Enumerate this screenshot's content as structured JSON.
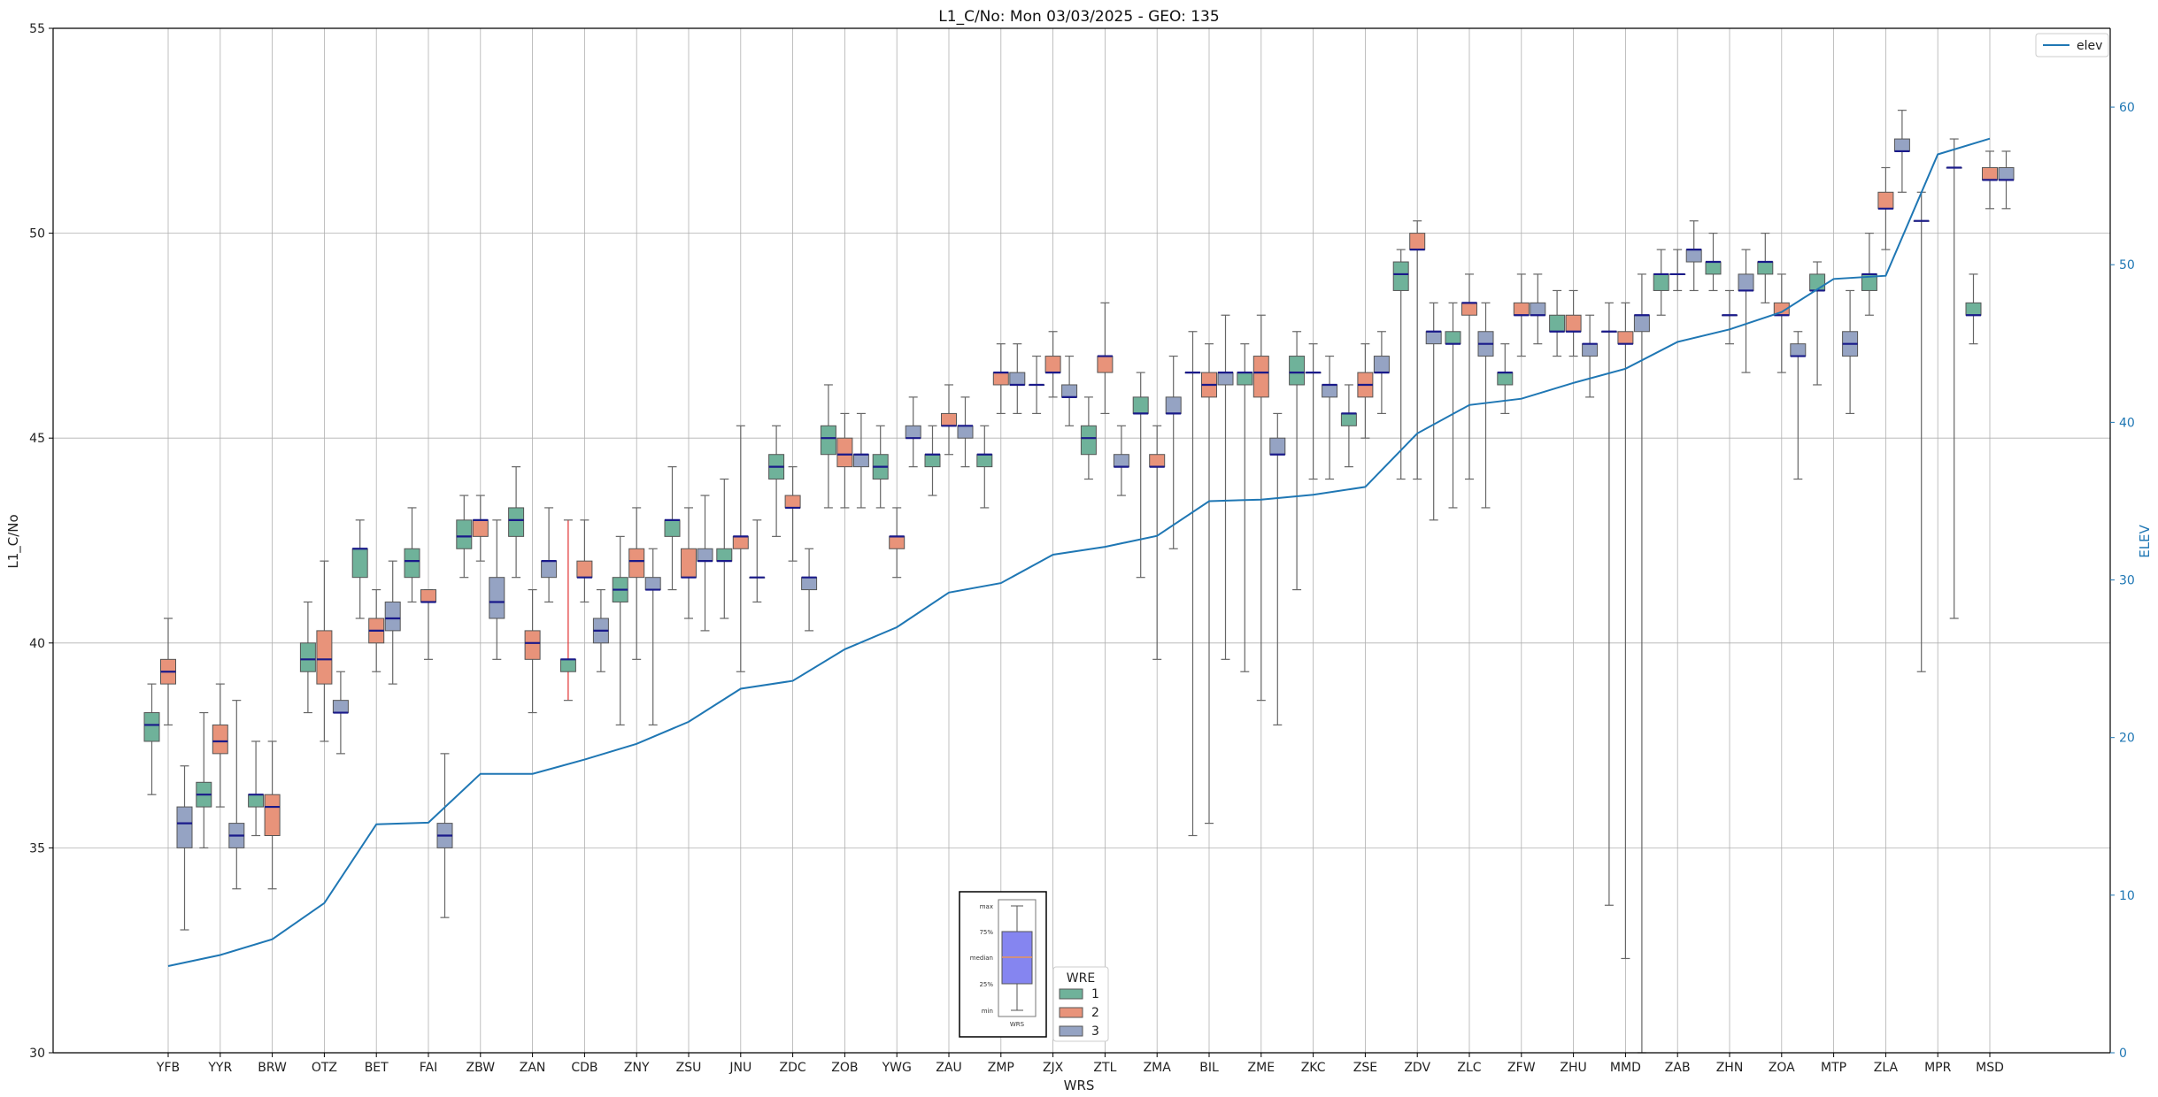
{
  "chart_data": {
    "type": "box",
    "title": "L1_C/No: Mon 03/03/2025 - GEO: 135",
    "xlabel": "WRS",
    "ylabel": "L1_C/No",
    "y2label": "ELEV",
    "ylim": [
      30,
      55
    ],
    "y2lim": [
      0,
      65
    ],
    "yticks": [
      "30",
      "35",
      "40",
      "45",
      "50",
      "55"
    ],
    "y2ticks": [
      "0",
      "10",
      "20",
      "30",
      "40",
      "50",
      "60"
    ],
    "grid": true,
    "categories": [
      "YFB",
      "YYR",
      "BRW",
      "OTZ",
      "BET",
      "FAI",
      "ZBW",
      "ZAN",
      "CDB",
      "ZNY",
      "ZSU",
      "JNU",
      "ZDC",
      "ZOB",
      "YWG",
      "ZAU",
      "ZMP",
      "ZJX",
      "ZTL",
      "ZMA",
      "BIL",
      "ZME",
      "ZKC",
      "ZSE",
      "ZDV",
      "ZLC",
      "ZFW",
      "ZHU",
      "MMD",
      "ZAB",
      "ZHN",
      "ZOA",
      "MTP",
      "ZLA",
      "MPR",
      "MSD"
    ],
    "elev": [
      5.5,
      6.2,
      7.2,
      9.5,
      14.5,
      14.6,
      17.7,
      17.7,
      18.6,
      19.6,
      21.0,
      23.1,
      23.6,
      25.6,
      27.0,
      29.2,
      29.8,
      31.6,
      32.1,
      32.8,
      35.0,
      35.1,
      35.4,
      35.9,
      39.3,
      41.1,
      41.5,
      42.5,
      43.4,
      45.1,
      45.9,
      47.0,
      49.1,
      49.3,
      57.0,
      58.0
    ],
    "wre_legend": {
      "title": "WRE",
      "items": [
        {
          "label": "1",
          "color": "#6fb29a"
        },
        {
          "label": "2",
          "color": "#e8937a"
        },
        {
          "label": "3",
          "color": "#95a3c3"
        }
      ]
    },
    "line_legend": {
      "label": "elev",
      "color": "#1f77b4"
    },
    "box_key": {
      "labels": [
        "max",
        "75%",
        "median",
        "25%",
        "min"
      ],
      "xlabel": "WRS"
    },
    "boxes": [
      {
        "wrs": "YFB",
        "wre": 1,
        "min": 36.3,
        "q1": 37.6,
        "med": 38.0,
        "q3": 38.3,
        "max": 39.0
      },
      {
        "wrs": "YFB",
        "wre": 2,
        "min": 38.0,
        "q1": 39.0,
        "med": 39.3,
        "q3": 39.6,
        "max": 40.6
      },
      {
        "wrs": "YFB",
        "wre": 3,
        "min": 33.0,
        "q1": 35.0,
        "med": 35.6,
        "q3": 36.0,
        "max": 37.0
      },
      {
        "wrs": "YYR",
        "wre": 1,
        "min": 35.0,
        "q1": 36.0,
        "med": 36.3,
        "q3": 36.6,
        "max": 38.3
      },
      {
        "wrs": "YYR",
        "wre": 2,
        "min": 36.0,
        "q1": 37.3,
        "med": 37.6,
        "q3": 38.0,
        "max": 39.0
      },
      {
        "wrs": "YYR",
        "wre": 3,
        "min": 34.0,
        "q1": 35.0,
        "med": 35.3,
        "q3": 35.6,
        "max": 38.6
      },
      {
        "wrs": "BRW",
        "wre": 1,
        "min": 35.3,
        "q1": 36.0,
        "med": 36.3,
        "q3": 36.3,
        "max": 37.6
      },
      {
        "wrs": "BRW",
        "wre": 2,
        "min": 34.0,
        "q1": 35.3,
        "med": 36.0,
        "q3": 36.3,
        "max": 37.6
      },
      {
        "wrs": "OTZ",
        "wre": 1,
        "min": 38.3,
        "q1": 39.3,
        "med": 39.6,
        "q3": 40.0,
        "max": 41.0
      },
      {
        "wrs": "OTZ",
        "wre": 2,
        "min": 37.6,
        "q1": 39.0,
        "med": 39.6,
        "q3": 40.3,
        "max": 42.0
      },
      {
        "wrs": "OTZ",
        "wre": 3,
        "min": 37.3,
        "q1": 38.3,
        "med": 38.3,
        "q3": 38.6,
        "max": 39.3
      },
      {
        "wrs": "BET",
        "wre": 1,
        "min": 40.6,
        "q1": 41.6,
        "med": 42.3,
        "q3": 42.3,
        "max": 43.0
      },
      {
        "wrs": "BET",
        "wre": 2,
        "min": 39.3,
        "q1": 40.0,
        "med": 40.3,
        "q3": 40.6,
        "max": 41.3
      },
      {
        "wrs": "BET",
        "wre": 3,
        "min": 39.0,
        "q1": 40.3,
        "med": 40.6,
        "q3": 41.0,
        "max": 42.0
      },
      {
        "wrs": "FAI",
        "wre": 1,
        "min": 41.0,
        "q1": 41.6,
        "med": 42.0,
        "q3": 42.3,
        "max": 43.3
      },
      {
        "wrs": "FAI",
        "wre": 2,
        "min": 39.6,
        "q1": 41.0,
        "med": 41.0,
        "q3": 41.3,
        "max": 41.3
      },
      {
        "wrs": "FAI",
        "wre": 3,
        "min": 33.3,
        "q1": 35.0,
        "med": 35.3,
        "q3": 35.6,
        "max": 37.3
      },
      {
        "wrs": "ZBW",
        "wre": 1,
        "min": 41.6,
        "q1": 42.3,
        "med": 42.6,
        "q3": 43.0,
        "max": 43.6
      },
      {
        "wrs": "ZBW",
        "wre": 2,
        "min": 42.0,
        "q1": 42.6,
        "med": 43.0,
        "q3": 43.0,
        "max": 43.6
      },
      {
        "wrs": "ZBW",
        "wre": 3,
        "min": 39.6,
        "q1": 40.6,
        "med": 41.0,
        "q3": 41.6,
        "max": 43.0
      },
      {
        "wrs": "ZAN",
        "wre": 1,
        "min": 41.6,
        "q1": 42.6,
        "med": 43.0,
        "q3": 43.3,
        "max": 44.3
      },
      {
        "wrs": "ZAN",
        "wre": 2,
        "min": 38.3,
        "q1": 39.6,
        "med": 40.0,
        "q3": 40.3,
        "max": 41.3
      },
      {
        "wrs": "ZAN",
        "wre": 3,
        "min": 41.0,
        "q1": 41.6,
        "med": 42.0,
        "q3": 42.0,
        "max": 43.3
      },
      {
        "wrs": "CDB",
        "wre": 1,
        "min": 38.6,
        "q1": 39.3,
        "med": 39.6,
        "q3": 39.6,
        "max": 43.0
      },
      {
        "wrs": "CDB",
        "wre": 2,
        "min": 41.0,
        "q1": 41.6,
        "med": 41.6,
        "q3": 42.0,
        "max": 43.0
      },
      {
        "wrs": "CDB",
        "wre": 3,
        "min": 39.3,
        "q1": 40.0,
        "med": 40.3,
        "q3": 40.6,
        "max": 41.3
      },
      {
        "wrs": "ZNY",
        "wre": 1,
        "min": 38.0,
        "q1": 41.0,
        "med": 41.3,
        "q3": 41.6,
        "max": 42.6
      },
      {
        "wrs": "ZNY",
        "wre": 2,
        "min": 39.6,
        "q1": 41.6,
        "med": 42.0,
        "q3": 42.3,
        "max": 43.3
      },
      {
        "wrs": "ZNY",
        "wre": 3,
        "min": 38.0,
        "q1": 41.3,
        "med": 41.3,
        "q3": 41.6,
        "max": 42.3
      },
      {
        "wrs": "ZSU",
        "wre": 1,
        "min": 41.3,
        "q1": 42.6,
        "med": 43.0,
        "q3": 43.0,
        "max": 44.3
      },
      {
        "wrs": "ZSU",
        "wre": 2,
        "min": 40.6,
        "q1": 41.6,
        "med": 41.6,
        "q3": 42.3,
        "max": 43.3
      },
      {
        "wrs": "ZSU",
        "wre": 3,
        "min": 40.3,
        "q1": 42.0,
        "med": 42.0,
        "q3": 42.3,
        "max": 43.6
      },
      {
        "wrs": "JNU",
        "wre": 1,
        "min": 40.6,
        "q1": 42.0,
        "med": 42.0,
        "q3": 42.3,
        "max": 44.0
      },
      {
        "wrs": "JNU",
        "wre": 2,
        "min": 39.3,
        "q1": 42.3,
        "med": 42.6,
        "q3": 42.6,
        "max": 45.3
      },
      {
        "wrs": "JNU",
        "wre": 3,
        "min": 41.0,
        "q1": 41.6,
        "med": 41.6,
        "q3": 41.6,
        "max": 43.0
      },
      {
        "wrs": "ZDC",
        "wre": 1,
        "min": 42.6,
        "q1": 44.0,
        "med": 44.3,
        "q3": 44.6,
        "max": 45.3
      },
      {
        "wrs": "ZDC",
        "wre": 2,
        "min": 42.0,
        "q1": 43.3,
        "med": 43.3,
        "q3": 43.6,
        "max": 44.3
      },
      {
        "wrs": "ZDC",
        "wre": 3,
        "min": 40.3,
        "q1": 41.3,
        "med": 41.6,
        "q3": 41.6,
        "max": 42.3
      },
      {
        "wrs": "ZOB",
        "wre": 1,
        "min": 43.3,
        "q1": 44.6,
        "med": 45.0,
        "q3": 45.3,
        "max": 46.3
      },
      {
        "wrs": "ZOB",
        "wre": 2,
        "min": 43.3,
        "q1": 44.3,
        "med": 44.6,
        "q3": 45.0,
        "max": 45.6
      },
      {
        "wrs": "ZOB",
        "wre": 3,
        "min": 43.3,
        "q1": 44.3,
        "med": 44.6,
        "q3": 44.6,
        "max": 45.6
      },
      {
        "wrs": "YWG",
        "wre": 1,
        "min": 43.3,
        "q1": 44.0,
        "med": 44.3,
        "q3": 44.6,
        "max": 45.3
      },
      {
        "wrs": "YWG",
        "wre": 2,
        "min": 41.6,
        "q1": 42.3,
        "med": 42.6,
        "q3": 42.6,
        "max": 43.3
      },
      {
        "wrs": "YWG",
        "wre": 3,
        "min": 44.3,
        "q1": 45.0,
        "med": 45.0,
        "q3": 45.3,
        "max": 46.0
      },
      {
        "wrs": "ZAU",
        "wre": 1,
        "min": 43.6,
        "q1": 44.3,
        "med": 44.6,
        "q3": 44.6,
        "max": 45.3
      },
      {
        "wrs": "ZAU",
        "wre": 2,
        "min": 44.6,
        "q1": 45.3,
        "med": 45.3,
        "q3": 45.6,
        "max": 46.3
      },
      {
        "wrs": "ZAU",
        "wre": 3,
        "min": 44.3,
        "q1": 45.0,
        "med": 45.3,
        "q3": 45.3,
        "max": 46.0
      },
      {
        "wrs": "ZMP",
        "wre": 1,
        "min": 43.3,
        "q1": 44.3,
        "med": 44.6,
        "q3": 44.6,
        "max": 45.3
      },
      {
        "wrs": "ZMP",
        "wre": 2,
        "min": 45.6,
        "q1": 46.3,
        "med": 46.6,
        "q3": 46.6,
        "max": 47.3
      },
      {
        "wrs": "ZMP",
        "wre": 3,
        "min": 45.6,
        "q1": 46.3,
        "med": 46.3,
        "q3": 46.6,
        "max": 47.3
      },
      {
        "wrs": "ZJX",
        "wre": 1,
        "min": 45.6,
        "q1": 46.3,
        "med": 46.3,
        "q3": 46.3,
        "max": 47.0
      },
      {
        "wrs": "ZJX",
        "wre": 2,
        "min": 46.0,
        "q1": 46.6,
        "med": 46.6,
        "q3": 47.0,
        "max": 47.6
      },
      {
        "wrs": "ZJX",
        "wre": 3,
        "min": 45.3,
        "q1": 46.0,
        "med": 46.0,
        "q3": 46.3,
        "max": 47.0
      },
      {
        "wrs": "ZTL",
        "wre": 1,
        "min": 44.0,
        "q1": 44.6,
        "med": 45.0,
        "q3": 45.3,
        "max": 46.0
      },
      {
        "wrs": "ZTL",
        "wre": 2,
        "min": 45.6,
        "q1": 46.6,
        "med": 47.0,
        "q3": 47.0,
        "max": 48.3
      },
      {
        "wrs": "ZTL",
        "wre": 3,
        "min": 43.6,
        "q1": 44.3,
        "med": 44.3,
        "q3": 44.6,
        "max": 45.3
      },
      {
        "wrs": "ZMA",
        "wre": 1,
        "min": 41.6,
        "q1": 45.6,
        "med": 45.6,
        "q3": 46.0,
        "max": 46.6
      },
      {
        "wrs": "ZMA",
        "wre": 2,
        "min": 39.6,
        "q1": 44.3,
        "med": 44.3,
        "q3": 44.6,
        "max": 45.3
      },
      {
        "wrs": "ZMA",
        "wre": 3,
        "min": 42.3,
        "q1": 45.6,
        "med": 45.6,
        "q3": 46.0,
        "max": 47.0
      },
      {
        "wrs": "BIL",
        "wre": 1,
        "min": 35.3,
        "q1": 46.6,
        "med": 46.6,
        "q3": 46.6,
        "max": 47.6
      },
      {
        "wrs": "BIL",
        "wre": 2,
        "min": 35.6,
        "q1": 46.0,
        "med": 46.3,
        "q3": 46.6,
        "max": 47.3
      },
      {
        "wrs": "BIL",
        "wre": 3,
        "min": 39.6,
        "q1": 46.3,
        "med": 46.6,
        "q3": 46.6,
        "max": 48.0
      },
      {
        "wrs": "ZME",
        "wre": 1,
        "min": 39.3,
        "q1": 46.3,
        "med": 46.6,
        "q3": 46.6,
        "max": 47.3
      },
      {
        "wrs": "ZME",
        "wre": 2,
        "min": 38.6,
        "q1": 46.0,
        "med": 46.6,
        "q3": 47.0,
        "max": 48.0
      },
      {
        "wrs": "ZME",
        "wre": 3,
        "min": 38.0,
        "q1": 44.6,
        "med": 44.6,
        "q3": 45.0,
        "max": 45.6
      },
      {
        "wrs": "ZKC",
        "wre": 1,
        "min": 41.3,
        "q1": 46.3,
        "med": 46.6,
        "q3": 47.0,
        "max": 47.6
      },
      {
        "wrs": "ZKC",
        "wre": 2,
        "min": 44.0,
        "q1": 46.6,
        "med": 46.6,
        "q3": 46.6,
        "max": 47.3
      },
      {
        "wrs": "ZKC",
        "wre": 3,
        "min": 44.0,
        "q1": 46.0,
        "med": 46.3,
        "q3": 46.3,
        "max": 47.0
      },
      {
        "wrs": "ZSE",
        "wre": 1,
        "min": 44.3,
        "q1": 45.3,
        "med": 45.6,
        "q3": 45.6,
        "max": 46.3
      },
      {
        "wrs": "ZSE",
        "wre": 2,
        "min": 45.0,
        "q1": 46.0,
        "med": 46.3,
        "q3": 46.6,
        "max": 47.3
      },
      {
        "wrs": "ZSE",
        "wre": 3,
        "min": 45.6,
        "q1": 46.6,
        "med": 46.6,
        "q3": 47.0,
        "max": 47.6
      },
      {
        "wrs": "ZDV",
        "wre": 1,
        "min": 44.0,
        "q1": 48.6,
        "med": 49.0,
        "q3": 49.3,
        "max": 49.6
      },
      {
        "wrs": "ZDV",
        "wre": 2,
        "min": 44.0,
        "q1": 49.6,
        "med": 49.6,
        "q3": 50.0,
        "max": 50.3
      },
      {
        "wrs": "ZDV",
        "wre": 3,
        "min": 43.0,
        "q1": 47.3,
        "med": 47.6,
        "q3": 47.6,
        "max": 48.3
      },
      {
        "wrs": "ZLC",
        "wre": 1,
        "min": 43.3,
        "q1": 47.3,
        "med": 47.3,
        "q3": 47.6,
        "max": 48.3
      },
      {
        "wrs": "ZLC",
        "wre": 2,
        "min": 44.0,
        "q1": 48.0,
        "med": 48.3,
        "q3": 48.3,
        "max": 49.0
      },
      {
        "wrs": "ZLC",
        "wre": 3,
        "min": 43.3,
        "q1": 47.0,
        "med": 47.3,
        "q3": 47.6,
        "max": 48.3
      },
      {
        "wrs": "ZFW",
        "wre": 1,
        "min": 45.6,
        "q1": 46.3,
        "med": 46.6,
        "q3": 46.6,
        "max": 47.3
      },
      {
        "wrs": "ZFW",
        "wre": 2,
        "min": 47.0,
        "q1": 48.0,
        "med": 48.0,
        "q3": 48.3,
        "max": 49.0
      },
      {
        "wrs": "ZFW",
        "wre": 3,
        "min": 47.3,
        "q1": 48.0,
        "med": 48.0,
        "q3": 48.3,
        "max": 49.0
      },
      {
        "wrs": "ZHU",
        "wre": 1,
        "min": 47.0,
        "q1": 47.6,
        "med": 47.6,
        "q3": 48.0,
        "max": 48.6
      },
      {
        "wrs": "ZHU",
        "wre": 2,
        "min": 47.0,
        "q1": 47.6,
        "med": 47.6,
        "q3": 48.0,
        "max": 48.6
      },
      {
        "wrs": "ZHU",
        "wre": 3,
        "min": 46.0,
        "q1": 47.0,
        "med": 47.3,
        "q3": 47.3,
        "max": 48.0
      },
      {
        "wrs": "MMD",
        "wre": 1,
        "min": 33.6,
        "q1": 47.6,
        "med": 47.6,
        "q3": 47.6,
        "max": 48.3
      },
      {
        "wrs": "MMD",
        "wre": 2,
        "min": 32.3,
        "q1": 47.3,
        "med": 47.3,
        "q3": 47.6,
        "max": 48.3
      },
      {
        "wrs": "MMD",
        "wre": 3,
        "min": 30.0,
        "q1": 47.6,
        "med": 48.0,
        "q3": 48.0,
        "max": 49.0
      },
      {
        "wrs": "ZAB",
        "wre": 1,
        "min": 48.0,
        "q1": 48.6,
        "med": 49.0,
        "q3": 49.0,
        "max": 49.6
      },
      {
        "wrs": "ZAB",
        "wre": 2,
        "min": 48.6,
        "q1": 49.0,
        "med": 49.0,
        "q3": 49.0,
        "max": 49.6
      },
      {
        "wrs": "ZAB",
        "wre": 3,
        "min": 48.6,
        "q1": 49.3,
        "med": 49.6,
        "q3": 49.6,
        "max": 50.3
      },
      {
        "wrs": "ZHN",
        "wre": 1,
        "min": 48.6,
        "q1": 49.0,
        "med": 49.3,
        "q3": 49.3,
        "max": 50.0
      },
      {
        "wrs": "ZHN",
        "wre": 2,
        "min": 47.3,
        "q1": 48.0,
        "med": 48.0,
        "q3": 48.0,
        "max": 48.6
      },
      {
        "wrs": "ZHN",
        "wre": 3,
        "min": 46.6,
        "q1": 48.6,
        "med": 48.6,
        "q3": 49.0,
        "max": 49.6
      },
      {
        "wrs": "ZOA",
        "wre": 1,
        "min": 48.3,
        "q1": 49.0,
        "med": 49.3,
        "q3": 49.3,
        "max": 50.0
      },
      {
        "wrs": "ZOA",
        "wre": 2,
        "min": 46.6,
        "q1": 48.0,
        "med": 48.0,
        "q3": 48.3,
        "max": 49.0
      },
      {
        "wrs": "ZOA",
        "wre": 3,
        "min": 44.0,
        "q1": 47.0,
        "med": 47.0,
        "q3": 47.3,
        "max": 47.6
      },
      {
        "wrs": "MTP",
        "wre": 1,
        "min": 46.3,
        "q1": 48.6,
        "med": 48.6,
        "q3": 49.0,
        "max": 49.3
      },
      {
        "wrs": "MTP",
        "wre": 3,
        "min": 45.6,
        "q1": 47.0,
        "med": 47.3,
        "q3": 47.6,
        "max": 48.6
      },
      {
        "wrs": "ZLA",
        "wre": 1,
        "min": 48.0,
        "q1": 48.6,
        "med": 49.0,
        "q3": 49.0,
        "max": 50.0
      },
      {
        "wrs": "ZLA",
        "wre": 2,
        "min": 49.6,
        "q1": 50.6,
        "med": 50.6,
        "q3": 51.0,
        "max": 51.6
      },
      {
        "wrs": "ZLA",
        "wre": 3,
        "min": 51.0,
        "q1": 52.0,
        "med": 52.0,
        "q3": 52.3,
        "max": 53.0
      },
      {
        "wrs": "MPR",
        "wre": 1,
        "min": 39.3,
        "q1": 50.3,
        "med": 50.3,
        "q3": 50.3,
        "max": 51.0
      },
      {
        "wrs": "MPR",
        "wre": 3,
        "min": 40.6,
        "q1": 51.6,
        "med": 51.6,
        "q3": 51.6,
        "max": 52.3
      },
      {
        "wrs": "MSD",
        "wre": 1,
        "min": 47.3,
        "q1": 48.0,
        "med": 48.0,
        "q3": 48.3,
        "max": 49.0
      },
      {
        "wrs": "MSD",
        "wre": 2,
        "min": 50.6,
        "q1": 51.3,
        "med": 51.3,
        "q3": 51.6,
        "max": 52.0
      },
      {
        "wrs": "MSD",
        "wre": 3,
        "min": 50.6,
        "q1": 51.3,
        "med": 51.3,
        "q3": 51.6,
        "max": 52.0
      }
    ]
  }
}
